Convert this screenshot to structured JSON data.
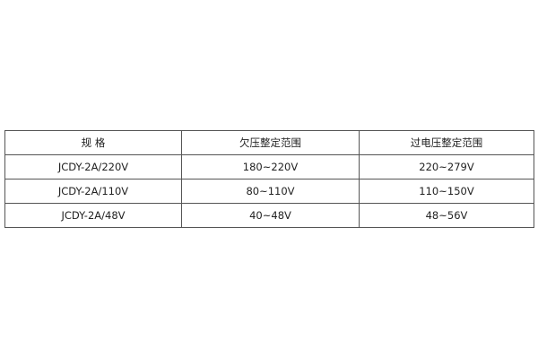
{
  "table": {
    "headers": [
      "规 格",
      "欠压整定范围",
      "过电压整定范围"
    ],
    "rows": [
      [
        "JCDY-2A/220V",
        "180~220V",
        "220~279V"
      ],
      [
        "JCDY-2A/110V",
        "80~110V",
        "110~150V"
      ],
      [
        "JCDY-2A/48V",
        "40~48V",
        "48~56V"
      ]
    ]
  }
}
